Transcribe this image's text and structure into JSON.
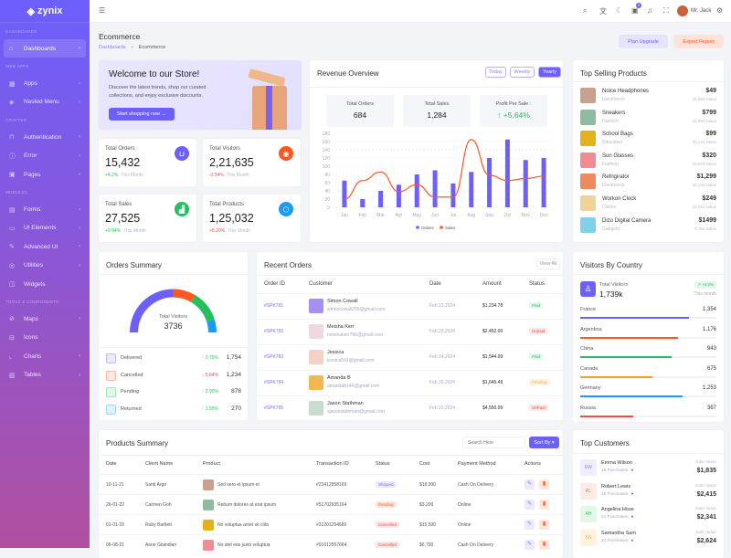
{
  "brand": "zynix",
  "sidebar": [
    {
      "section": "DASHBOARDS"
    },
    {
      "label": "Dashboards",
      "icon": "home-icon",
      "glyph": "⌂",
      "chev": true,
      "active": true
    },
    {
      "section": "WEB APPS"
    },
    {
      "label": "Apps",
      "icon": "grid-icon",
      "glyph": "▦",
      "chev": true
    },
    {
      "label": "Nested Menu",
      "icon": "layers-icon",
      "glyph": "◈",
      "chev": true
    },
    {
      "section": "CRAFTED"
    },
    {
      "label": "Authentication",
      "icon": "lock-icon",
      "glyph": "⊓",
      "chev": true
    },
    {
      "label": "Error",
      "icon": "info-icon",
      "glyph": "ⓘ",
      "chev": true
    },
    {
      "label": "Pages",
      "icon": "file-icon",
      "glyph": "▣",
      "chev": true
    },
    {
      "section": "MODULES"
    },
    {
      "label": "Forms",
      "icon": "form-icon",
      "glyph": "▤",
      "chev": true
    },
    {
      "label": "UI Elements",
      "icon": "box-icon",
      "glyph": "▭",
      "chev": true
    },
    {
      "label": "Advanced UI",
      "icon": "pen-icon",
      "glyph": "✎",
      "chev": true
    },
    {
      "label": "Utilities",
      "icon": "award-icon",
      "glyph": "◎",
      "chev": true
    },
    {
      "label": "Widgets",
      "icon": "gift-icon",
      "glyph": "◫",
      "chev": false
    },
    {
      "section": "TOOLS & COMPONENTS"
    },
    {
      "label": "Maps",
      "icon": "compass-icon",
      "glyph": "⊘",
      "chev": true
    },
    {
      "label": "Icons",
      "icon": "icons-icon",
      "glyph": "⊟",
      "chev": false
    },
    {
      "label": "Charts",
      "icon": "chart-icon",
      "glyph": "⌞",
      "chev": true
    },
    {
      "label": "Tables",
      "icon": "table-icon",
      "glyph": "▥",
      "chev": true
    }
  ],
  "header": {
    "user": "Mr. Jack",
    "notif_count": "5"
  },
  "page": {
    "title": "Ecommerce",
    "crumb_root": "Dashboards",
    "crumb_sep": "»",
    "crumb_current": "Ecommerce",
    "plan_upgrade": "Plan Upgrade",
    "export_report": "Export Report"
  },
  "welcome": {
    "title": "Welcome to our Store!",
    "text1": "Discover the latest trends, shop our curated",
    "text2": "collections, and enjoy exclusive discounts.",
    "button": "Start shopping now →"
  },
  "stats": [
    {
      "label": "Total Orders",
      "value": "15,432",
      "change": "+4.2%",
      "period": "This Month",
      "trend": "up",
      "color": "#6c5ffc",
      "icon": "basket-icon",
      "glyph": "⊔"
    },
    {
      "label": "Total Visitors",
      "value": "2,21,635",
      "change": "-2.54%",
      "period": "This Month",
      "trend": "down",
      "color": "#fe5722",
      "icon": "users-icon",
      "glyph": "◉"
    },
    {
      "label": "Total Sales",
      "value": "27,525",
      "change": "+0.94%",
      "period": "This Month",
      "trend": "up",
      "color": "#26bf5d",
      "icon": "bar-chart-icon",
      "glyph": "▟"
    },
    {
      "label": "Total Products",
      "value": "1,25,032",
      "change": "+5.20%",
      "period": "This Month",
      "trend": "down",
      "color": "#1a9bfc",
      "icon": "cube-icon",
      "glyph": "⬡"
    }
  ],
  "revenue": {
    "title": "Revenue Overview",
    "tabs": [
      "Today",
      "Weekly",
      "Yearly"
    ],
    "active_tab": "Yearly",
    "kpis": [
      {
        "label": "Total Orders",
        "value": "684"
      },
      {
        "label": "Total Sales",
        "value": "1,284"
      },
      {
        "label": "Profit Per Sale :",
        "value": "↑ +5.64%"
      }
    ]
  },
  "chart_data": {
    "type": "bar",
    "categories": [
      "Jan",
      "Feb",
      "Mar",
      "Apr",
      "May",
      "Jun",
      "Jul",
      "Aug",
      "Sep",
      "Oct",
      "Nov",
      "Dec"
    ],
    "series": [
      {
        "name": "Orders",
        "type": "bar",
        "color": "#6c5ffc",
        "values": [
          65,
          20,
          40,
          55,
          80,
          90,
          58,
          86,
          120,
          165,
          115,
          120
        ]
      },
      {
        "name": "Sales",
        "type": "line",
        "color": "#fe5722",
        "values": [
          20,
          65,
          86,
          38,
          55,
          25,
          25,
          165,
          78,
          65,
          70,
          76
        ]
      }
    ],
    "ylim": [
      0,
      180
    ],
    "yticks": [
      0,
      20,
      40,
      60,
      80,
      100,
      120,
      140,
      160,
      180
    ],
    "grid": true,
    "legend": "bottom"
  },
  "top_selling": {
    "title": "Top Selling Products",
    "items": [
      {
        "name": "Noice Headphones",
        "category": "Electronics",
        "price": "$49",
        "sales": "15,064 Sales",
        "color": "#c9a08e"
      },
      {
        "name": "Sneakers",
        "category": "Fashion",
        "price": "$799",
        "sales": "14,862 Sales",
        "color": "#8fb9a0"
      },
      {
        "name": "School Bags",
        "category": "Education",
        "price": "$99",
        "sales": "20,124 Sales",
        "color": "#e2b21e"
      },
      {
        "name": "Sun Glasses",
        "category": "Fashion",
        "price": "$320",
        "sales": "18,673 Sales",
        "color": "#ef8b93"
      },
      {
        "name": "Refrigirator",
        "category": "Electronics",
        "price": "$1,299",
        "sales": "15,233 Sales",
        "color": "#f08a5e"
      },
      {
        "name": "Workon Clock",
        "category": "Clocks",
        "price": "$249",
        "sales": "12,451 Sales",
        "color": "#efd39a"
      },
      {
        "name": "Dizo Digital Camera",
        "category": "Gadgets",
        "price": "$1499",
        "sales": "9,754 Sales",
        "color": "#7fd0ea"
      }
    ]
  },
  "orders_summary": {
    "title": "Orders Summary",
    "center_label": "Total Visitors",
    "center_value": "3736",
    "items": [
      {
        "label": "Delivered",
        "change": "↑ 0.75%",
        "trend": "up",
        "value": "1,754",
        "color": "#6c5ffc",
        "share": 0.5
      },
      {
        "label": "Cancelled",
        "change": "↓ 5.64%",
        "trend": "down",
        "value": "1,234",
        "color": "#fe5722",
        "share": 0.17
      },
      {
        "label": "Pending",
        "change": "↑ 2.90%",
        "trend": "up",
        "value": "878",
        "color": "#26bf5d",
        "share": 0.23
      },
      {
        "label": "Returned",
        "change": "↑ 1.55%",
        "trend": "up",
        "value": "270",
        "color": "#1a9bfc",
        "share": 0.1
      }
    ]
  },
  "recent_orders": {
    "title": "Recent Orders",
    "view_all": "View All",
    "columns": [
      "Order ID",
      "Customer",
      "Date",
      "Amount",
      "Status"
    ],
    "rows": [
      {
        "id": "#SPK781",
        "name": "Simon Cowall",
        "email": "simoncowall209@gmail.com",
        "date": "Feb 22,2024",
        "amount": "$1,234.78",
        "status": "Paid"
      },
      {
        "id": "#SPK782",
        "name": "Meisha Kerr",
        "email": "meishakerr766@gmail.com",
        "date": "Feb 23,2024",
        "amount": "$2,452.00",
        "status": "Unpaid"
      },
      {
        "id": "#SPK783",
        "name": "Jessica",
        "email": "jessica041@gmail.com",
        "date": "Feb 24,2024",
        "amount": "$1,544.99",
        "status": "Paid"
      },
      {
        "id": "#SPK784",
        "name": "Amanda B",
        "email": "amandab144@gmail.com",
        "date": "Feb 25,2024",
        "amount": "$1,645.49",
        "status": "Pending"
      },
      {
        "id": "#SPK785",
        "name": "Jason Stathman",
        "email": "sjasonstathman@gmail.com",
        "date": "Feb 22,2024",
        "amount": "$4,550.99",
        "status": "UnPaid"
      }
    ]
  },
  "visitors": {
    "title": "Visitors By Country",
    "total_label": "Total Visitors",
    "total_value": "1,739k",
    "badge": "↗ +4.2%",
    "period": "This month",
    "countries": [
      {
        "name": "France",
        "value": "1,354",
        "pct": 80,
        "color": "#6c5ffc"
      },
      {
        "name": "Argentina",
        "value": "1,176",
        "pct": 72,
        "color": "#fe5722"
      },
      {
        "name": "China",
        "value": "943",
        "pct": 67,
        "color": "#26bf5d"
      },
      {
        "name": "Canada",
        "value": "675",
        "pct": 53,
        "color": "#fd9c17"
      },
      {
        "name": "Germany",
        "value": "1,253",
        "pct": 75,
        "color": "#1a9bfc"
      },
      {
        "name": "Russia",
        "value": "367",
        "pct": 39,
        "color": "#f24b4b"
      }
    ]
  },
  "products_summary": {
    "title": "Products Summary",
    "search_placeholder": "Search Here",
    "sort": "Sort By ▾",
    "columns": [
      "Date",
      "Client Name",
      "Product",
      "Transaction ID",
      "Status",
      "Cost",
      "Payment Method",
      "Actions"
    ],
    "rows": [
      {
        "date": "10-11-21",
        "client": "Santi Argo",
        "product": "Sed vero et ipsum et",
        "txn": "#23412858169",
        "status": "Shipped",
        "cost": "$18,900",
        "payment": "Cash On Delivery",
        "color": "#c9a08e"
      },
      {
        "date": "26-01-22",
        "client": "Carmen Goh",
        "product": "Rebum dolores at erat ipsum",
        "txn": "#51702935164",
        "status": "Pending",
        "cost": "$3,200",
        "payment": "Online",
        "color": "#8fb9a0"
      },
      {
        "date": "01-01-22",
        "client": "Ruby Bartlett",
        "product": "No voluptua amet sit clita",
        "txn": "#31201254680",
        "status": "Cancelled",
        "cost": "$15,500",
        "payment": "Online",
        "color": "#e2b21e"
      },
      {
        "date": "06-08-21",
        "client": "Anne Glaindian",
        "product": "No stet eos justo voluptua",
        "txn": "#91012557664",
        "status": "Cancelled",
        "cost": "$6,700",
        "payment": "Cash On Delivery",
        "color": "#ef8b93"
      }
    ]
  },
  "top_customers": {
    "title": "Top Customers",
    "items": [
      {
        "initials": "EW",
        "name": "Emma Wilson",
        "purchases": "15 Purchases",
        "label": "Sale Value",
        "value": "$1,835",
        "bg": "#efedff",
        "fg": "#8a80f5"
      },
      {
        "initials": "RL",
        "name": "Robert Lewis",
        "purchases": "18 Purchases",
        "label": "Sale Value",
        "value": "$2,415",
        "bg": "#ffebe5",
        "fg": "#f27a55"
      },
      {
        "initials": "AH",
        "name": "Angelina Hose",
        "purchases": "21 Purchases",
        "label": "Sale Value",
        "value": "$2,341",
        "bg": "#e3f8eb",
        "fg": "#3cc46f"
      },
      {
        "initials": "SS",
        "name": "Samantha Sam",
        "purchases": "24 Purchases",
        "label": "Sale Value",
        "value": "$2,624",
        "bg": "#fff2df",
        "fg": "#f5a83c"
      }
    ]
  }
}
